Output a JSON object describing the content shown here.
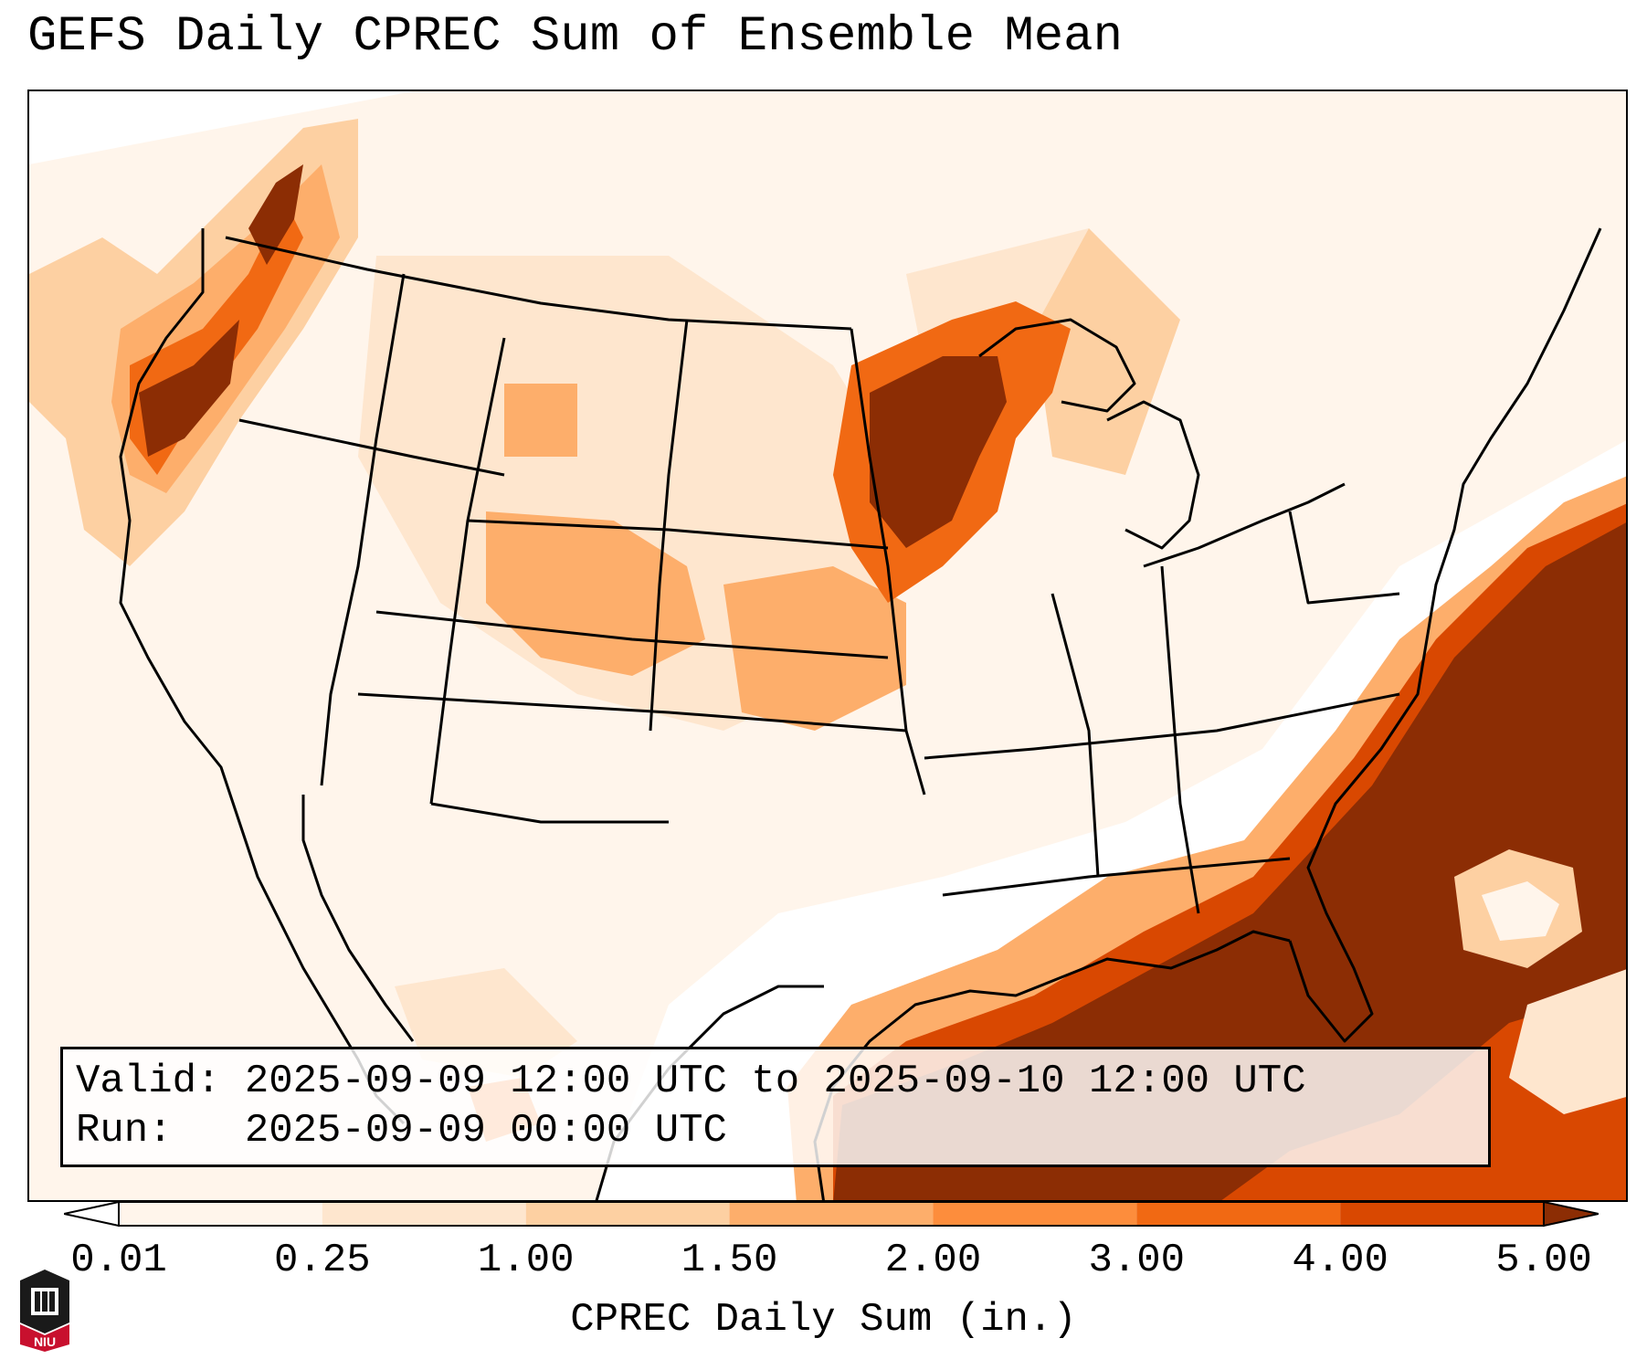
{
  "title": "GEFS Daily CPREC Sum of Ensemble Mean",
  "info": {
    "valid_line": "Valid: 2025-09-09 12:00 UTC to 2025-09-10 12:00 UTC",
    "run_line": "Run:   2025-09-09 00:00 UTC"
  },
  "colorbar": {
    "label": "CPREC Daily Sum (in.)",
    "ticks": [
      "0.01",
      "0.25",
      "1.00",
      "1.50",
      "2.00",
      "3.00",
      "4.00",
      "5.00"
    ],
    "colors": [
      "#fff5eb",
      "#fee6ce",
      "#fdd0a2",
      "#fdae6b",
      "#fd8d3c",
      "#f16913",
      "#d94801",
      "#8c2d04"
    ],
    "extend": "both"
  },
  "logo": {
    "text": "NIU"
  }
}
